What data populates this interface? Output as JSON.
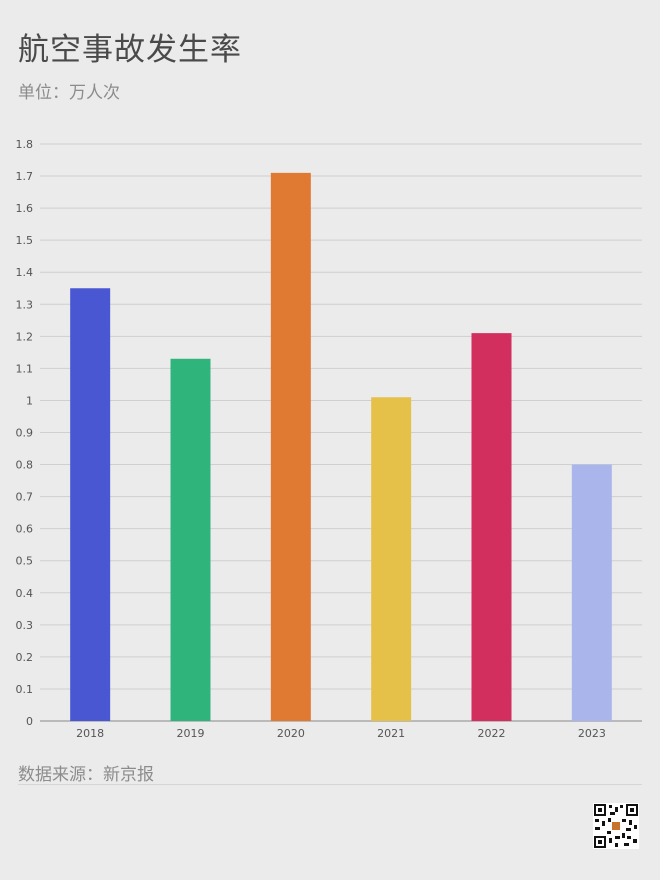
{
  "header": {
    "title": "航空事故发生率",
    "subtitle": "单位：万人次"
  },
  "footer": {
    "source": "数据来源：新京报"
  },
  "chart_data": {
    "type": "bar",
    "categories": [
      "2018",
      "2019",
      "2020",
      "2021",
      "2022",
      "2023"
    ],
    "values": [
      1.35,
      1.13,
      1.71,
      1.01,
      1.21,
      0.8
    ],
    "colors": [
      "#4957d2",
      "#2fb57b",
      "#e07a33",
      "#e5c14a",
      "#d22e5e",
      "#aab5ec"
    ],
    "ylim": [
      0,
      1.8
    ],
    "yticks": [
      "0",
      "0.1",
      "0.2",
      "0.3",
      "0.4",
      "0.5",
      "0.6",
      "0.7",
      "0.8",
      "0.9",
      "1",
      "1.1",
      "1.2",
      "1.3",
      "1.4",
      "1.5",
      "1.6",
      "1.7",
      "1.8"
    ],
    "grid": true,
    "title": "航空事故发生率",
    "subtitle": "单位：万人次",
    "xlabel": "",
    "ylabel": ""
  }
}
